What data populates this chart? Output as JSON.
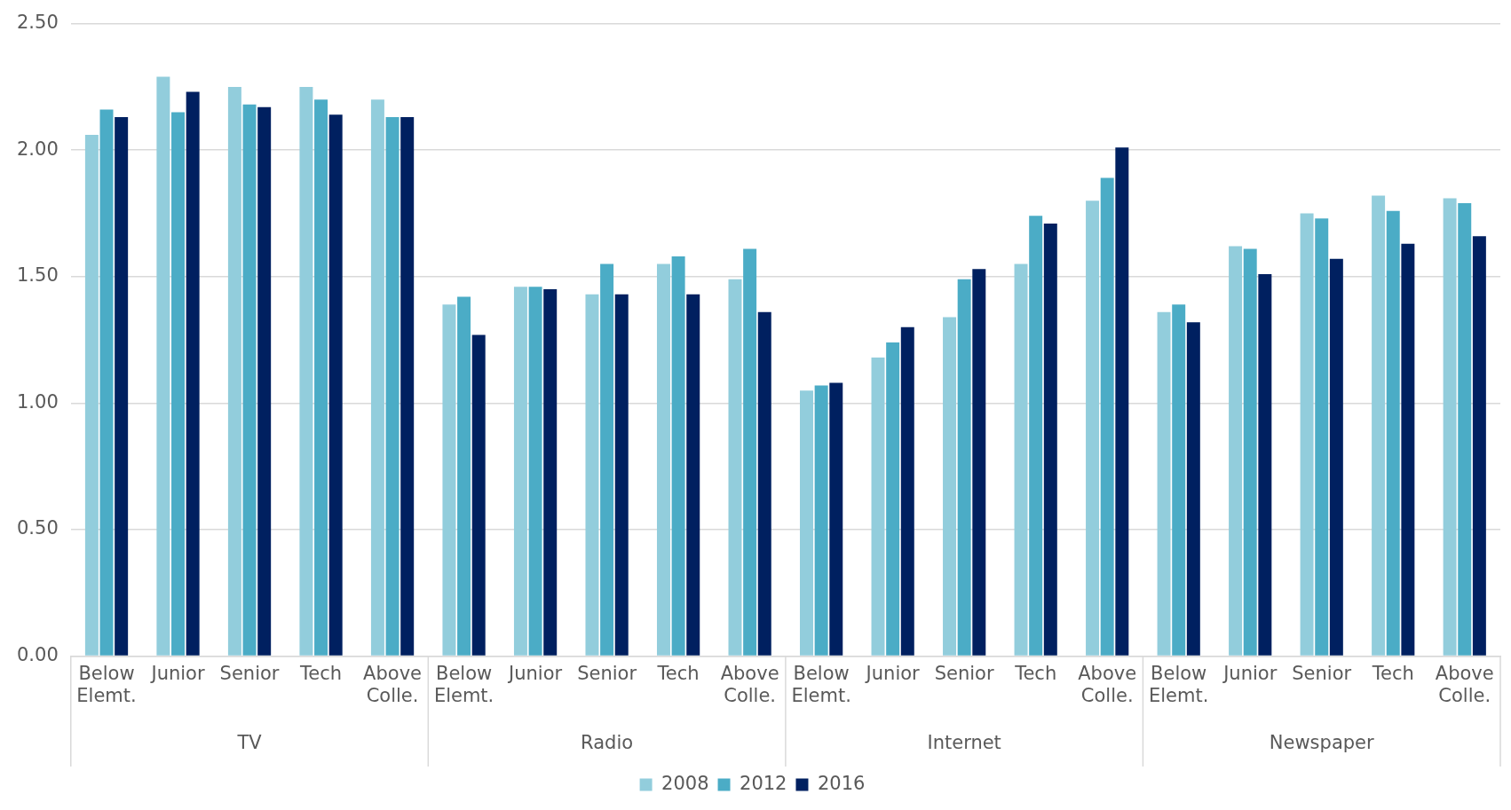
{
  "chart_data": {
    "type": "bar",
    "categories": [
      "Below Elemt.",
      "Junior",
      "Senior",
      "Tech",
      "Above Colle.",
      "Below Elemt.",
      "Junior",
      "Senior",
      "Tech",
      "Above Colle.",
      "Below Elemt.",
      "Junior",
      "Senior",
      "Tech",
      "Above Colle.",
      "Below Elemt.",
      "Junior",
      "Senior",
      "Tech",
      "Above Colle."
    ],
    "annotations": [
      "TV",
      "Radio",
      "Internet",
      "Newspaper"
    ],
    "series": [
      {
        "name": "2008",
        "color": "#92cddc",
        "values": [
          2.06,
          2.29,
          2.25,
          2.25,
          2.2,
          1.39,
          1.46,
          1.43,
          1.55,
          1.49,
          1.05,
          1.18,
          1.34,
          1.55,
          1.8,
          1.36,
          1.62,
          1.75,
          1.82,
          1.81
        ]
      },
      {
        "name": "2012",
        "color": "#4bacc6",
        "values": [
          2.16,
          2.15,
          2.18,
          2.2,
          2.13,
          1.42,
          1.46,
          1.55,
          1.58,
          1.61,
          1.07,
          1.24,
          1.49,
          1.74,
          1.89,
          1.39,
          1.61,
          1.73,
          1.76,
          1.79
        ]
      },
      {
        "name": "2016",
        "color": "#002060",
        "values": [
          2.13,
          2.23,
          2.17,
          2.14,
          2.13,
          1.27,
          1.45,
          1.43,
          1.43,
          1.36,
          1.08,
          1.3,
          1.53,
          1.71,
          2.01,
          1.32,
          1.51,
          1.57,
          1.63,
          1.66
        ]
      }
    ],
    "ylim": [
      0,
      2.5
    ],
    "yticks": [
      {
        "value": 0,
        "label": "0.00"
      },
      {
        "value": 0.5,
        "label": "0.50"
      },
      {
        "value": 1,
        "label": "1.00"
      },
      {
        "value": 1.5,
        "label": "1.50"
      },
      {
        "value": 2,
        "label": "2.00"
      },
      {
        "value": 2.5,
        "label": "2.50"
      }
    ],
    "grid": "y",
    "legend": "bottom"
  }
}
